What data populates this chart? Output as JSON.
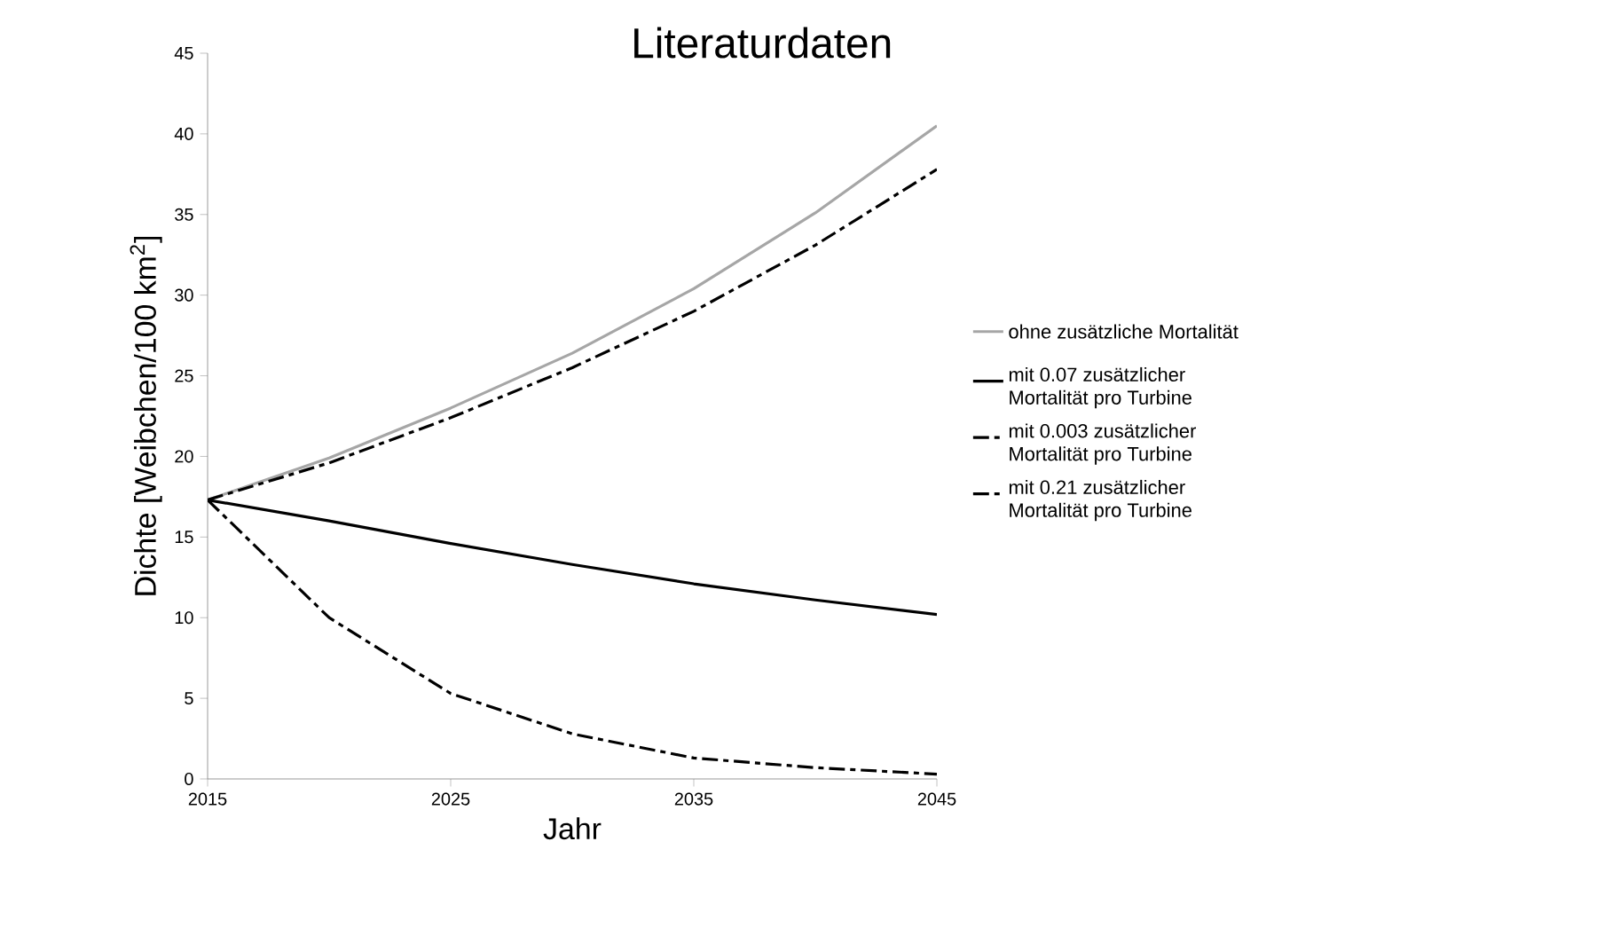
{
  "chart_data": {
    "type": "line",
    "title": "Literaturdaten",
    "xlabel": "Jahr",
    "ylabel": "Dichte [Weibchen/100 km$^{2}$]",
    "x": [
      2015,
      2020,
      2025,
      2030,
      2035,
      2040,
      2045
    ],
    "series": [
      {
        "name": "ohne zusätzliche Mortalität",
        "color": "#a6a6a6",
        "line_style": "solid",
        "values": [
          17.3,
          19.9,
          23.0,
          26.4,
          30.4,
          35.1,
          40.5
        ]
      },
      {
        "name": "mit 0.07 zusätzlicher Mortalität pro Turbine",
        "color": "#000000",
        "line_style": "solid",
        "values": [
          17.3,
          16.0,
          14.6,
          13.3,
          12.1,
          11.1,
          10.2
        ]
      },
      {
        "name": "mit 0.003 zusätzlicher Mortalität pro Turbine",
        "color": "#000000",
        "line_style": "dashed",
        "values": [
          17.3,
          19.6,
          22.4,
          25.5,
          29.0,
          33.1,
          37.8
        ]
      },
      {
        "name": "mit 0.21 zusätzlicher Mortalität pro Turbine",
        "color": "#000000",
        "line_style": "dashed",
        "values": [
          17.3,
          10.0,
          5.3,
          2.8,
          1.3,
          0.7,
          0.3
        ]
      }
    ],
    "xlim": [
      2015,
      2045
    ],
    "xticks": [
      2015,
      2025,
      2035,
      2045
    ],
    "ylim": [
      0,
      45
    ],
    "yticks": [
      0,
      5,
      10,
      15,
      20,
      25,
      30,
      35,
      40,
      45
    ],
    "grid": false,
    "legend": "right",
    "marker": "none"
  }
}
